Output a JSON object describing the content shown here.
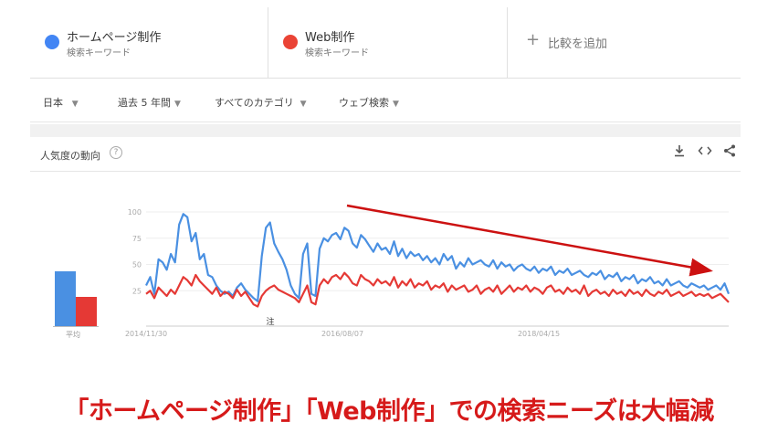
{
  "compare": {
    "terms": [
      {
        "name": "ホームページ制作",
        "sub": "検索キーワード",
        "color": "#4285f4"
      },
      {
        "name": "Web制作",
        "sub": "検索キーワード",
        "color": "#ea4335"
      }
    ],
    "add_label": "比較を追加",
    "add_icon": "plus-icon"
  },
  "filters": {
    "region": "日本",
    "period": "過去 5 年間",
    "category": "すべてのカテゴリ",
    "property": "ウェブ検索"
  },
  "card": {
    "title": "人気度の動向",
    "help_icon": "question-mark-icon",
    "tools": [
      "download-icon",
      "embed-icon",
      "share-icon"
    ]
  },
  "averages": {
    "label": "平均",
    "values": [
      48,
      26
    ]
  },
  "chart_data": {
    "type": "line",
    "ylim": [
      0,
      100
    ],
    "y_ticks": [
      100,
      75,
      50,
      25
    ],
    "x_tick_labels": [
      "2014/11/30",
      "2016/08/07",
      "2018/04/15"
    ],
    "note_label": "注",
    "series": [
      {
        "name": "ホームページ制作",
        "color": "#4a90e2",
        "values": [
          30,
          38,
          22,
          55,
          52,
          45,
          60,
          52,
          88,
          98,
          95,
          72,
          80,
          55,
          60,
          40,
          38,
          30,
          25,
          22,
          24,
          20,
          28,
          32,
          26,
          22,
          18,
          15,
          58,
          85,
          90,
          70,
          62,
          55,
          45,
          30,
          22,
          18,
          60,
          70,
          22,
          20,
          65,
          75,
          72,
          78,
          80,
          74,
          85,
          82,
          70,
          66,
          78,
          74,
          68,
          62,
          70,
          64,
          66,
          60,
          72,
          58,
          65,
          56,
          62,
          58,
          60,
          54,
          58,
          52,
          56,
          50,
          60,
          54,
          58,
          46,
          52,
          48,
          56,
          50,
          52,
          54,
          50,
          48,
          54,
          46,
          52,
          48,
          50,
          44,
          48,
          50,
          46,
          44,
          48,
          42,
          46,
          44,
          48,
          40,
          44,
          42,
          46,
          40,
          42,
          44,
          40,
          38,
          42,
          40,
          44,
          36,
          40,
          38,
          42,
          34,
          38,
          36,
          40,
          32,
          36,
          34,
          38,
          32,
          34,
          30,
          36,
          30,
          32,
          34,
          30,
          28,
          32,
          30,
          28,
          30,
          26,
          28,
          30,
          26,
          32,
          22
        ]
      },
      {
        "name": "Web制作",
        "color": "#e53935",
        "values": [
          22,
          25,
          18,
          28,
          24,
          20,
          26,
          22,
          30,
          38,
          35,
          30,
          40,
          34,
          30,
          26,
          22,
          28,
          20,
          24,
          22,
          18,
          26,
          20,
          24,
          18,
          12,
          10,
          20,
          25,
          28,
          30,
          26,
          24,
          22,
          20,
          18,
          14,
          22,
          30,
          14,
          12,
          30,
          36,
          32,
          38,
          40,
          36,
          42,
          38,
          32,
          30,
          40,
          36,
          34,
          30,
          36,
          32,
          34,
          30,
          38,
          28,
          34,
          30,
          36,
          28,
          32,
          30,
          34,
          26,
          30,
          28,
          32,
          24,
          30,
          26,
          28,
          30,
          24,
          26,
          30,
          22,
          26,
          28,
          24,
          30,
          22,
          26,
          30,
          24,
          28,
          26,
          30,
          24,
          28,
          26,
          22,
          28,
          30,
          24,
          26,
          22,
          28,
          24,
          26,
          22,
          30,
          20,
          24,
          26,
          22,
          24,
          20,
          26,
          22,
          24,
          20,
          26,
          22,
          24,
          20,
          26,
          22,
          20,
          24,
          22,
          26,
          20,
          22,
          24,
          20,
          22,
          24,
          20,
          22,
          20,
          22,
          18,
          20,
          22,
          18,
          14
        ]
      }
    ]
  },
  "headline": "「ホームページ制作」「Web制作」での検索ニーズは大幅減"
}
